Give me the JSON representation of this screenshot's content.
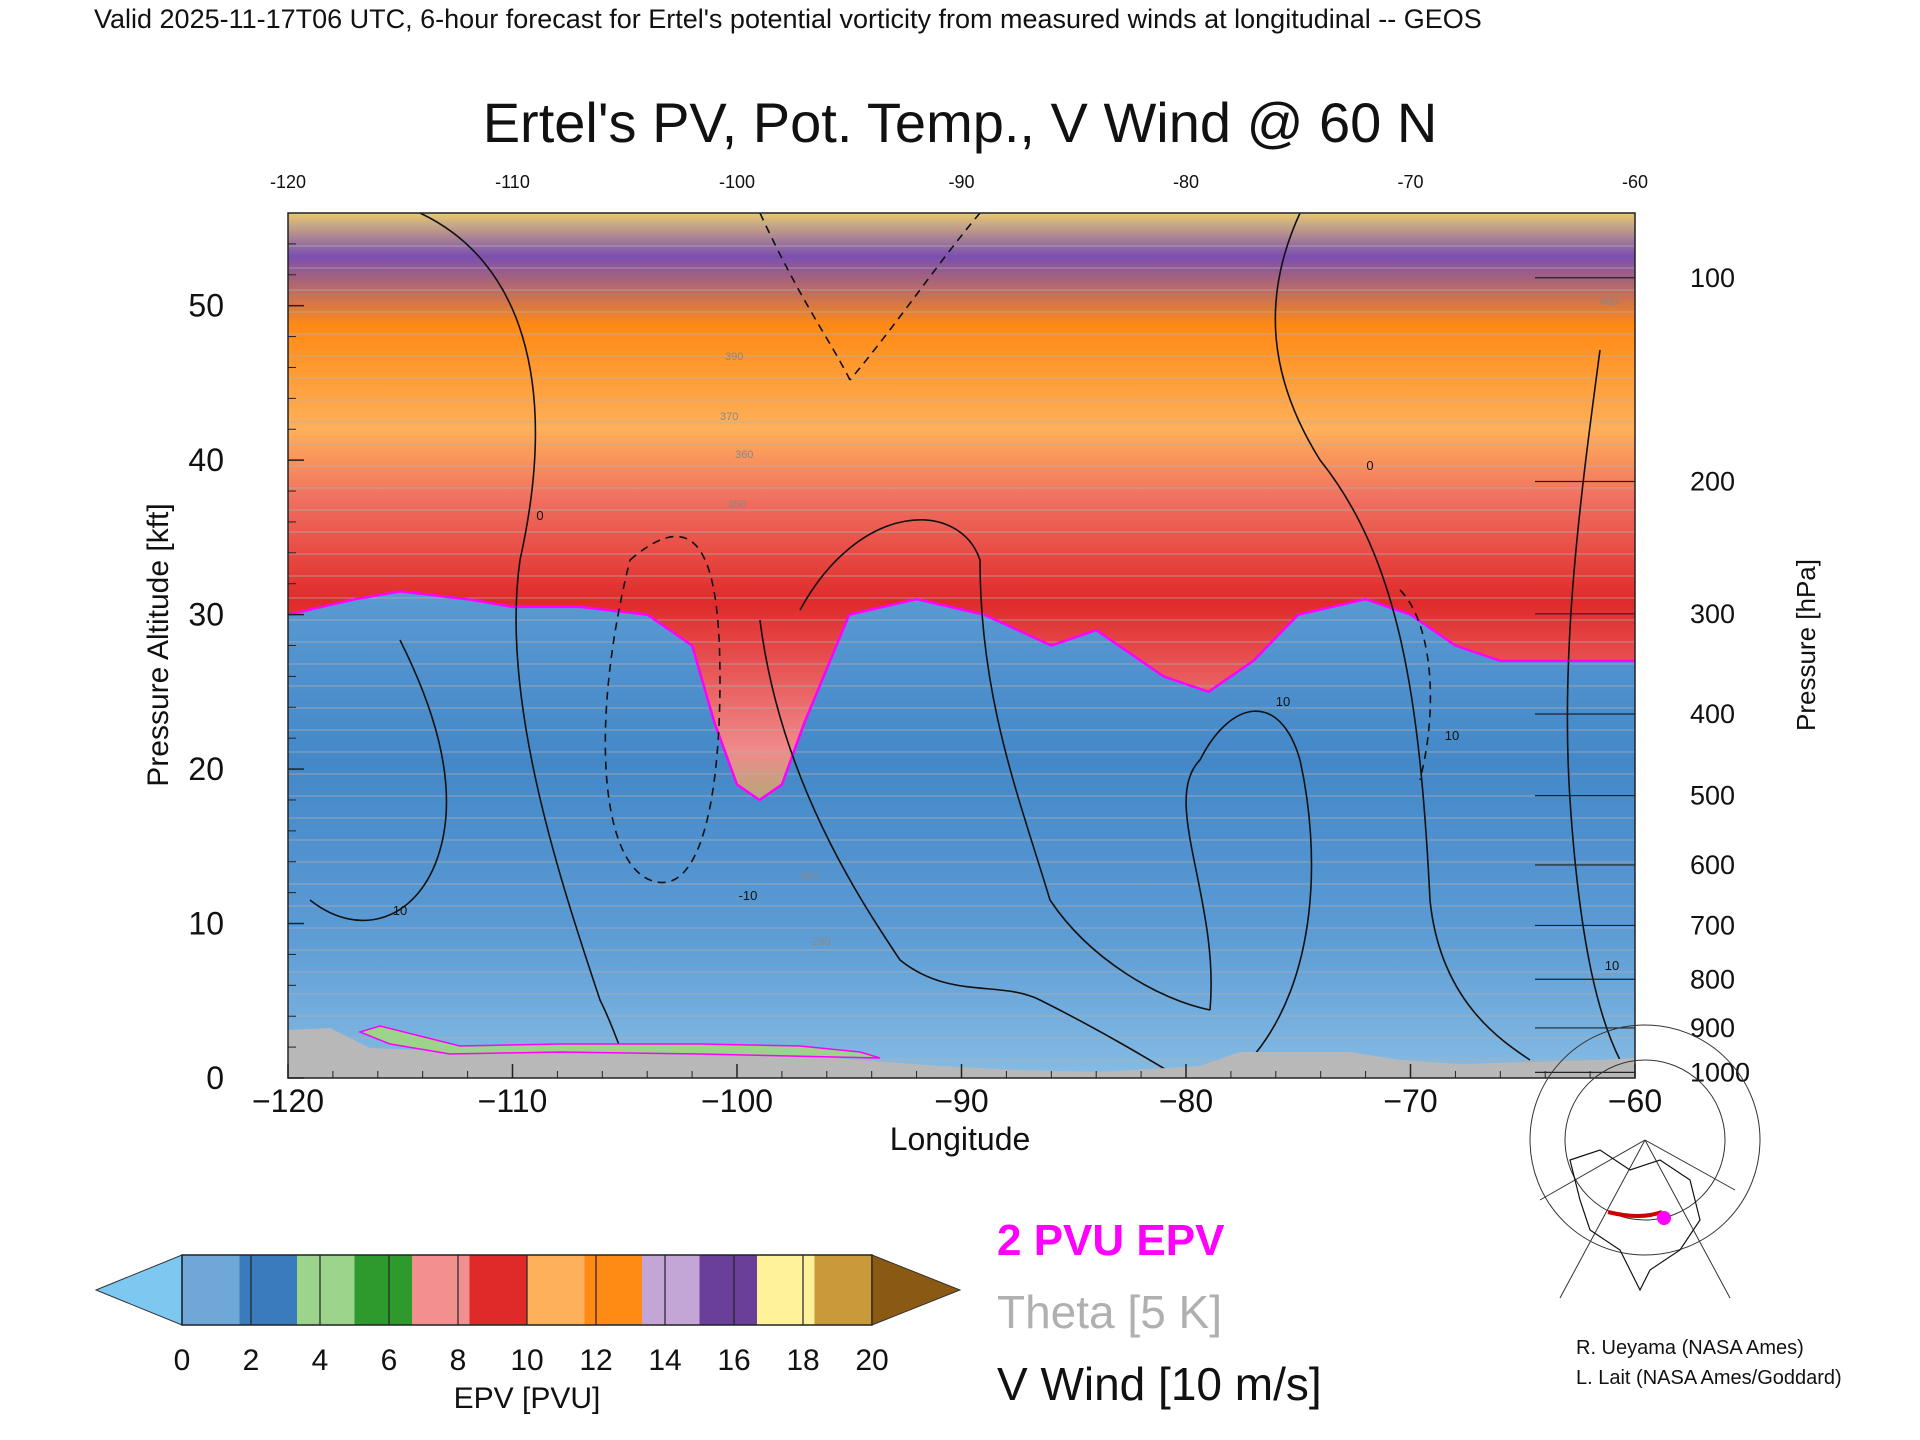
{
  "header": {
    "valid_line": "Valid 2025-11-17T06 UTC, 6-hour forecast for Ertel's potential vorticity from measured winds at longitudinal -- GEOS"
  },
  "chart_data": {
    "type": "heatmap",
    "title": "Ertel's PV, Pot. Temp., V Wind @ 60 N",
    "xlabel": "Longitude",
    "ylabel": "Pressure Altitude [kft]",
    "y2label": "Pressure [hPa]",
    "xlim": [
      -120,
      -60
    ],
    "ylim": [
      0,
      56
    ],
    "x_ticks": [
      -120,
      -110,
      -100,
      -90,
      -80,
      -70,
      -60
    ],
    "x_tick_labels": [
      "−120",
      "−110",
      "−100",
      "−90",
      "−80",
      "−70",
      "−60"
    ],
    "top_x_tick_labels": [
      "-120",
      "-110",
      "-100",
      "-90",
      "-80",
      "-70",
      "-60"
    ],
    "y_ticks": [
      0,
      10,
      20,
      30,
      40,
      50
    ],
    "y_tick_labels": [
      "0",
      "10",
      "20",
      "30",
      "40",
      "50"
    ],
    "pressure_ticks_hpa": [
      100,
      200,
      300,
      400,
      500,
      600,
      700,
      800,
      900,
      1000
    ],
    "pressure_tick_labels": [
      "100",
      "200",
      "300",
      "400",
      "500",
      "600",
      "700",
      "800",
      "900",
      "1000"
    ],
    "colorbar": {
      "label": "EPV [PVU]",
      "ticks": [
        0,
        2,
        4,
        6,
        8,
        10,
        12,
        14,
        16,
        18,
        20
      ],
      "tick_labels": [
        "0",
        "2",
        "4",
        "6",
        "8",
        "10",
        "12",
        "14",
        "16",
        "18",
        "20"
      ],
      "colors": [
        "#6fa8d8",
        "#3a7bbd",
        "#9bd48a",
        "#2e9a2e",
        "#f29090",
        "#e02a2a",
        "#ffb05a",
        "#ff8a14",
        "#c3a6d6",
        "#6a3f9a",
        "#fff29a",
        "#c89a3a"
      ],
      "under_color": "#7cc8f0",
      "over_color": "#8a5a14"
    },
    "tropopause_boundary_2pvu": {
      "lon": [
        -120,
        -117,
        -115,
        -112,
        -110,
        -107,
        -104,
        -102,
        -101,
        -100,
        -99,
        -98,
        -97,
        -95,
        -92,
        -89,
        -86,
        -84,
        -81,
        -79,
        -77,
        -75,
        -72,
        -70,
        -68,
        -66,
        -63,
        -60
      ],
      "kft": [
        30,
        31,
        31.5,
        31,
        30.5,
        30.5,
        30,
        28,
        23,
        19,
        18,
        19,
        23,
        30,
        31,
        30,
        28,
        29,
        26,
        25,
        27,
        30,
        31,
        30,
        28,
        27,
        27,
        27
      ]
    },
    "v_wind_contours": {
      "interval_ms": 10,
      "labels": [
        "0",
        "10",
        "-10"
      ]
    },
    "legend": [
      {
        "label": "2 PVU EPV",
        "color": "#ff00ff"
      },
      {
        "label": "Theta [5 K]",
        "color": "#a0a0a0"
      },
      {
        "label": "V Wind [10 m/s]",
        "color": "#111111"
      }
    ],
    "theta_labels": [
      "390",
      "400",
      "370",
      "360",
      "350",
      "300",
      "290"
    ]
  },
  "credits": {
    "line1": "R. Ueyama (NASA Ames)",
    "line2": "L. Lait (NASA Ames/Goddard)"
  },
  "inset_map": {
    "marker_color": "#ff00ff",
    "section_color": "#cc0000"
  }
}
